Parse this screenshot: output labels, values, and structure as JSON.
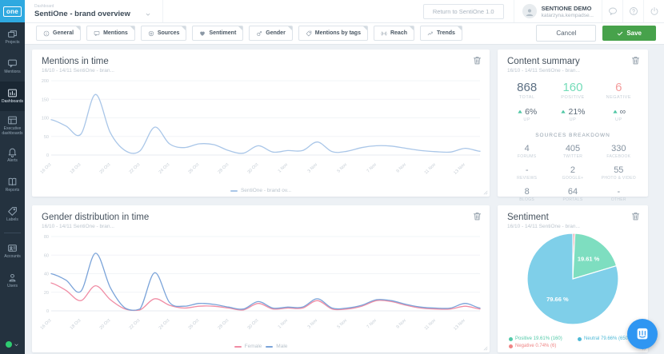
{
  "app": {
    "logo_text": "one"
  },
  "sidebar": {
    "items": [
      {
        "label": "Projects"
      },
      {
        "label": "Mentions"
      },
      {
        "label": "Dashboards"
      },
      {
        "label": "Executive dashboards"
      },
      {
        "label": "Alerts"
      },
      {
        "label": "Reports"
      },
      {
        "label": "Labels"
      },
      {
        "label": "Accounts"
      },
      {
        "label": "Users"
      }
    ]
  },
  "header": {
    "context_label": "Dashboard",
    "dashboard_name": "SentiOne - brand overview",
    "return_button": "Return to SentiOne 1.0",
    "user_name": "SENTIONE DEMO",
    "user_email": "katarzyna.kempadse..."
  },
  "toolbar": {
    "tabs": [
      "General",
      "Mentions",
      "Sources",
      "Sentiment",
      "Gender",
      "Mentions by tags",
      "Reach",
      "Trends"
    ],
    "cancel_label": "Cancel",
    "save_label": "Save"
  },
  "panels": {
    "mentions": {
      "title": "Mentions in time",
      "subtitle": "16/10 - 14/11   SentiOne - bran...",
      "legend": "SentiOne - brand ov..."
    },
    "content_summary": {
      "title": "Content summary",
      "subtitle": "16/10 - 14/11   SentiOne - bran...",
      "stats": [
        {
          "value": "868",
          "label": "TOTAL",
          "color": "#5d7083"
        },
        {
          "value": "160",
          "label": "POSITIVE",
          "color": "#74dcb9"
        },
        {
          "value": "6",
          "label": "NEGATIVE",
          "color": "#f49c9c"
        }
      ],
      "trends": [
        {
          "value": "6%",
          "label": "UP"
        },
        {
          "value": "21%",
          "label": "UP"
        },
        {
          "value": "∞",
          "label": "UP"
        }
      ],
      "sources_header": "SOURCES BREAKDOWN",
      "sources": [
        {
          "value": "4",
          "label": "FORUMS"
        },
        {
          "value": "405",
          "label": "TWITTER"
        },
        {
          "value": "330",
          "label": "FACEBOOK"
        },
        {
          "value": "-",
          "label": "REVIEWS"
        },
        {
          "value": "2",
          "label": "GOOGLE+"
        },
        {
          "value": "55",
          "label": "PHOTO & VIDEO"
        },
        {
          "value": "8",
          "label": "BLOGS"
        },
        {
          "value": "64",
          "label": "PORTALS"
        },
        {
          "value": "-",
          "label": "OTHER"
        }
      ]
    },
    "gender": {
      "title": "Gender distribution in time",
      "subtitle": "16/10 - 14/11   SentiOne - bran...",
      "legend": [
        {
          "name": "Female",
          "color": "#f08ca4"
        },
        {
          "name": "Male",
          "color": "#7aa3d9"
        }
      ]
    },
    "sentiment": {
      "title": "Sentiment",
      "subtitle": "16/10 - 14/11   SentiOne - bran...",
      "legend": [
        {
          "text": "Positive 19.61% (160)",
          "color": "#52c9a8"
        },
        {
          "text": "Neutral 79.66% (650)",
          "color": "#4fb9d6"
        },
        {
          "text": "Negative 0.74% (6)",
          "color": "#ef8585"
        }
      ]
    }
  },
  "chart_data": [
    {
      "id": "mentions_in_time",
      "type": "line",
      "title": "Mentions in time",
      "x": [
        "16 Oct",
        "17 Oct",
        "18 Oct",
        "19 Oct",
        "20 Oct",
        "21 Oct",
        "22 Oct",
        "23 Oct",
        "24 Oct",
        "25 Oct",
        "26 Oct",
        "27 Oct",
        "28 Oct",
        "29 Oct",
        "30 Oct",
        "31 Oct",
        "1 Nov",
        "2 Nov",
        "3 Nov",
        "4 Nov",
        "5 Nov",
        "6 Nov",
        "7 Nov",
        "8 Nov",
        "9 Nov",
        "10 Nov",
        "11 Nov",
        "12 Nov",
        "13 Nov",
        "14 Nov"
      ],
      "x_tick_step": 2,
      "ylim": [
        0,
        200
      ],
      "yticks": [
        0,
        50,
        100,
        150,
        200
      ],
      "series": [
        {
          "name": "SentiOne - brand ov...",
          "color": "#a9c6e8",
          "values": [
            95,
            78,
            56,
            163,
            60,
            12,
            11,
            75,
            30,
            20,
            30,
            28,
            12,
            5,
            25,
            8,
            12,
            12,
            35,
            9,
            10,
            20,
            25,
            24,
            18,
            12,
            9,
            8,
            18,
            10
          ]
        }
      ]
    },
    {
      "id": "gender_distribution_in_time",
      "type": "line",
      "title": "Gender distribution in time",
      "x": [
        "16 Oct",
        "17 Oct",
        "18 Oct",
        "19 Oct",
        "20 Oct",
        "21 Oct",
        "22 Oct",
        "23 Oct",
        "24 Oct",
        "25 Oct",
        "26 Oct",
        "27 Oct",
        "28 Oct",
        "29 Oct",
        "30 Oct",
        "31 Oct",
        "1 Nov",
        "2 Nov",
        "3 Nov",
        "4 Nov",
        "5 Nov",
        "6 Nov",
        "7 Nov",
        "8 Nov",
        "9 Nov",
        "10 Nov",
        "11 Nov",
        "12 Nov",
        "13 Nov",
        "14 Nov"
      ],
      "x_tick_step": 2,
      "ylim": [
        0,
        80
      ],
      "yticks": [
        0,
        20,
        40,
        60,
        80
      ],
      "series": [
        {
          "name": "Female",
          "color": "#f08ca4",
          "values": [
            30,
            22,
            11,
            27,
            12,
            2,
            1,
            13,
            6,
            3,
            5,
            5,
            3,
            1,
            8,
            2,
            3,
            3,
            11,
            2,
            2,
            5,
            11,
            10,
            6,
            3,
            2,
            2,
            5,
            2
          ]
        },
        {
          "name": "Male",
          "color": "#7aa3d9",
          "values": [
            40,
            33,
            21,
            62,
            25,
            3,
            2,
            41,
            9,
            5,
            8,
            7,
            4,
            2,
            10,
            3,
            4,
            4,
            13,
            3,
            3,
            6,
            12,
            11,
            7,
            4,
            3,
            3,
            8,
            3
          ]
        }
      ]
    },
    {
      "id": "sentiment",
      "type": "pie",
      "title": "Sentiment",
      "start_angle": -90,
      "slices": [
        {
          "name": "Negative",
          "pct": 0.74,
          "count": 6,
          "color": "#e8949c",
          "slice_label": ""
        },
        {
          "name": "Positive",
          "pct": 19.61,
          "count": 160,
          "color": "#7edec0",
          "slice_label": "19.61 %"
        },
        {
          "name": "Neutral",
          "pct": 79.66,
          "count": 650,
          "color": "#7fcfe9",
          "slice_label": "79.66 %"
        }
      ]
    }
  ]
}
